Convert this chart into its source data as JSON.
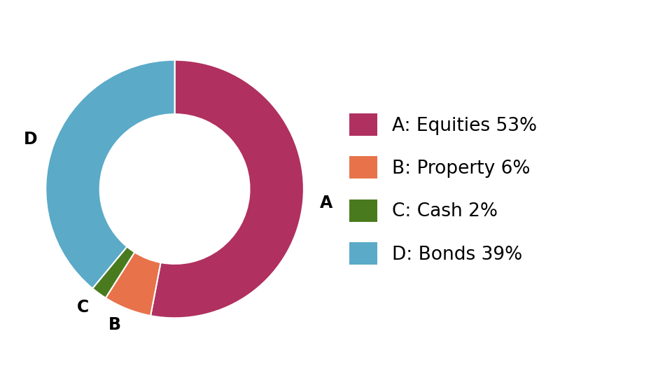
{
  "labels": [
    "A",
    "B",
    "C",
    "D"
  ],
  "legend_labels": [
    "A: Equities 53%",
    "B: Property 6%",
    "C: Cash 2%",
    "D: Bonds 39%"
  ],
  "values": [
    53,
    6,
    2,
    39
  ],
  "colors": [
    "#b03060",
    "#e8724a",
    "#4a7a1e",
    "#5aaac8"
  ],
  "background_color": "#ffffff",
  "donut_width": 0.42,
  "label_fontsize": 17,
  "legend_fontsize": 19,
  "startangle": 90
}
